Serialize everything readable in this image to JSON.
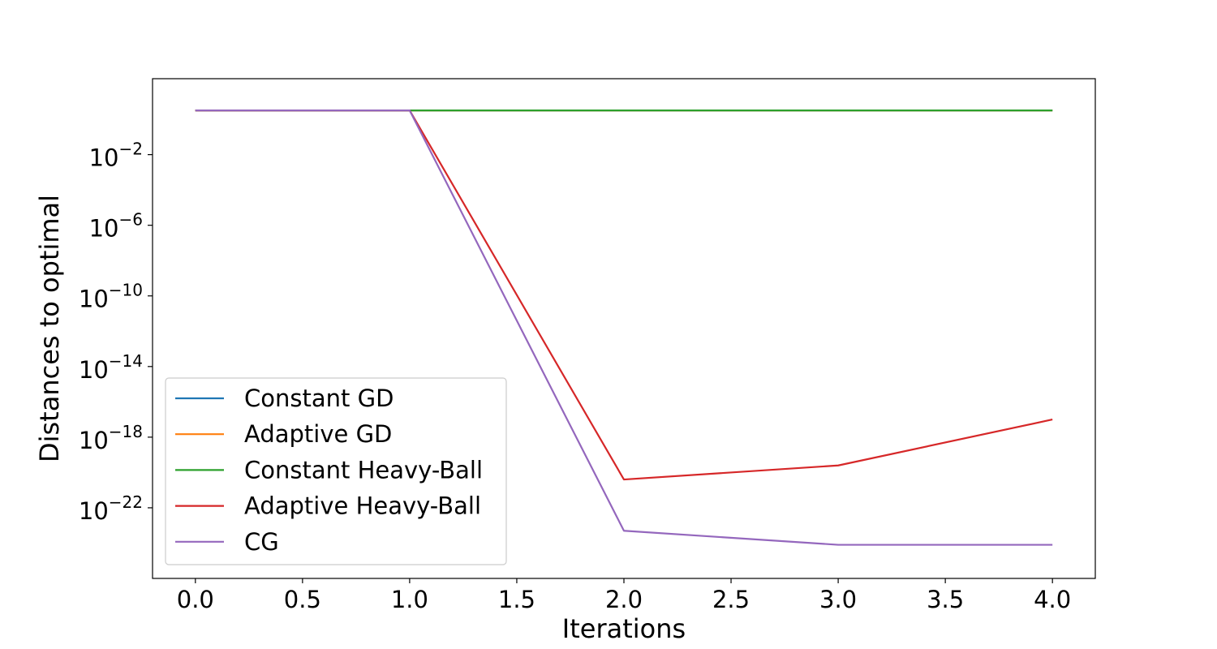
{
  "chart_data": {
    "type": "line",
    "title": "",
    "xlabel": "Iterations",
    "ylabel": "Distances to optimal",
    "x": [
      0,
      1,
      2,
      3,
      4
    ],
    "xlim": [
      -0.2,
      4.2
    ],
    "xticks": [
      0.0,
      0.5,
      1.0,
      1.5,
      2.0,
      2.5,
      3.0,
      3.5,
      4.0
    ],
    "xtick_labels": [
      "0.0",
      "0.5",
      "1.0",
      "1.5",
      "2.0",
      "2.5",
      "3.0",
      "3.5",
      "4.0"
    ],
    "yscale": "log",
    "ylim": [
      1e-26,
      200.0
    ],
    "yticks": [
      1e-22,
      1e-18,
      1e-14,
      1e-10,
      1e-06,
      0.01
    ],
    "ytick_labels": [
      {
        "base": "10",
        "exp": "−22"
      },
      {
        "base": "10",
        "exp": "−18"
      },
      {
        "base": "10",
        "exp": "−14"
      },
      {
        "base": "10",
        "exp": "−10"
      },
      {
        "base": "10",
        "exp": "−6"
      },
      {
        "base": "10",
        "exp": "−2"
      }
    ],
    "grid": false,
    "legend_position": "lower-left",
    "series": [
      {
        "name": "Constant GD",
        "color": "#1f77b4",
        "values": [
          3.2,
          3.2,
          3.2,
          3.2,
          3.2
        ]
      },
      {
        "name": "Adaptive GD",
        "color": "#ff7f0e",
        "values": [
          3.2,
          3.2,
          3.2,
          3.2,
          3.2
        ]
      },
      {
        "name": "Constant Heavy-Ball",
        "color": "#2ca02c",
        "values": [
          3.2,
          3.2,
          3.2,
          3.2,
          3.2
        ]
      },
      {
        "name": "Adaptive Heavy-Ball",
        "color": "#d62728",
        "values": [
          3.2,
          3.2,
          4e-21,
          2.5e-20,
          1e-17
        ]
      },
      {
        "name": "CG",
        "color": "#9467bd",
        "values": [
          3.2,
          3.2,
          5e-24,
          8e-25,
          8e-25
        ]
      }
    ]
  }
}
